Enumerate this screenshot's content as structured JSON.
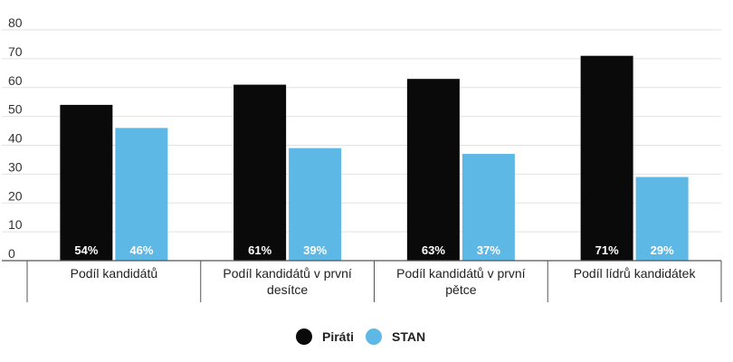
{
  "chart_data": {
    "type": "bar",
    "title": "",
    "xlabel": "",
    "ylabel": "",
    "ylim": [
      0,
      80
    ],
    "yticks": [
      0,
      10,
      20,
      30,
      40,
      50,
      60,
      70,
      80
    ],
    "grid": true,
    "categories": [
      [
        "Podíl kandidátů"
      ],
      [
        "Podíl kandidátů v první",
        "desítce"
      ],
      [
        "Podíl kandidátů v první",
        "pětce"
      ],
      [
        "Podíl lídrů kandidátek"
      ]
    ],
    "series": [
      {
        "name": "Piráti",
        "color": "#0a0a0a",
        "values": [
          54,
          61,
          63,
          71
        ],
        "labels": [
          "54%",
          "61%",
          "63%",
          "71%"
        ]
      },
      {
        "name": "STAN",
        "color": "#5db8e6",
        "values": [
          46,
          39,
          37,
          29
        ],
        "labels": [
          "46%",
          "39%",
          "37%",
          "29%"
        ]
      }
    ],
    "legend_position": "bottom-center"
  }
}
